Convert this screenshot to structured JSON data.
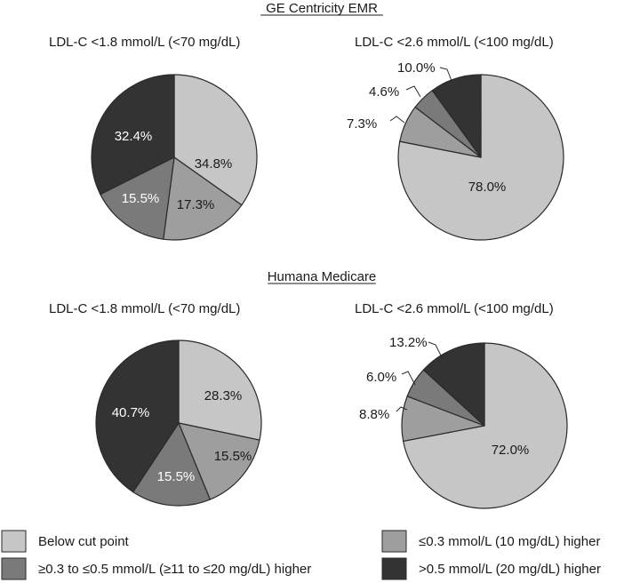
{
  "colors": {
    "below": "#c6c6c6",
    "le03": "#9e9e9e",
    "mid": "#7a7a7a",
    "gt05": "#333333",
    "stroke": "#2a2a2a",
    "label_dark": "#1a1a1a",
    "label_light": "#ffffff"
  },
  "legend": [
    {
      "key": "below",
      "label": "Below cut point"
    },
    {
      "key": "le03",
      "label": "≤0.3 mmol/L (10 mg/dL) higher"
    },
    {
      "key": "mid",
      "label": "≥0.3 to ≤0.5 mmol/L (≥11 to ≤20 mg/dL) higher"
    },
    {
      "key": "gt05",
      "label": ">0.5 mmol/L (20 mg/dL) higher"
    }
  ],
  "chart_data": [
    {
      "type": "pie",
      "group": "GE Centricity EMR",
      "title": "LDL-C <1.8 mmol/L (<70 mg/dL)",
      "slices": [
        {
          "key": "below",
          "value": 34.8,
          "label": "34.8%"
        },
        {
          "key": "le03",
          "value": 17.3,
          "label": "17.3%"
        },
        {
          "key": "mid",
          "value": 15.5,
          "label": "15.5%"
        },
        {
          "key": "gt05",
          "value": 32.4,
          "label": "32.4%"
        }
      ]
    },
    {
      "type": "pie",
      "group": "GE Centricity EMR",
      "title": "LDL-C <2.6 mmol/L (<100 mg/dL)",
      "slices": [
        {
          "key": "below",
          "value": 78.0,
          "label": "78.0%"
        },
        {
          "key": "le03",
          "value": 7.3,
          "label": "7.3%"
        },
        {
          "key": "mid",
          "value": 4.6,
          "label": "4.6%"
        },
        {
          "key": "gt05",
          "value": 10.0,
          "label": "10.0%"
        }
      ]
    },
    {
      "type": "pie",
      "group": "Humana Medicare",
      "title": "LDL-C <1.8 mmol/L (<70 mg/dL)",
      "slices": [
        {
          "key": "below",
          "value": 28.3,
          "label": "28.3%"
        },
        {
          "key": "le03",
          "value": 15.5,
          "label": "15.5%"
        },
        {
          "key": "mid",
          "value": 15.5,
          "label": "15.5%"
        },
        {
          "key": "gt05",
          "value": 40.7,
          "label": "40.7%"
        }
      ]
    },
    {
      "type": "pie",
      "group": "Humana Medicare",
      "title": "LDL-C <2.6 mmol/L (<100 mg/dL)",
      "slices": [
        {
          "key": "below",
          "value": 72.0,
          "label": "72.0%"
        },
        {
          "key": "le03",
          "value": 8.8,
          "label": "8.8%"
        },
        {
          "key": "mid",
          "value": 6.0,
          "label": "6.0%"
        },
        {
          "key": "gt05",
          "value": 13.2,
          "label": "13.2%"
        }
      ]
    }
  ]
}
